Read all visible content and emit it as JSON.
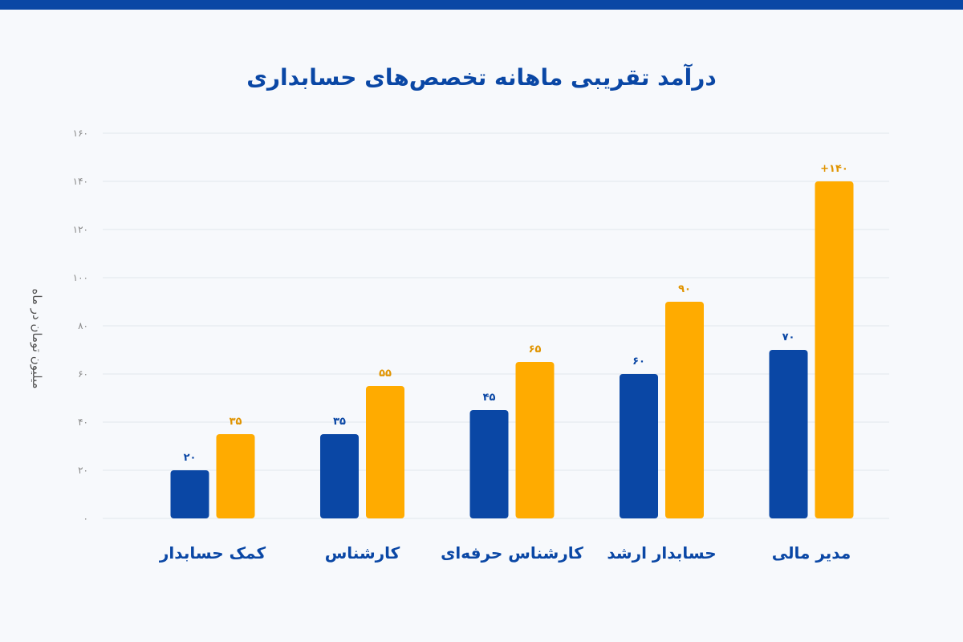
{
  "chart_data": {
    "type": "bar",
    "title": "درآمد تقریبی ماهانه تخصص‌های حسابداری",
    "ylabel": "میلیون تومان در ماه",
    "xlabel": "",
    "ylim": [
      0,
      160
    ],
    "yticks": [
      0,
      20,
      40,
      60,
      80,
      100,
      120,
      140,
      160
    ],
    "ytick_labels": [
      "۰",
      "۲۰",
      "۴۰",
      "۶۰",
      "۸۰",
      "۱۰۰",
      "۱۲۰",
      "۱۴۰",
      "۱۶۰"
    ],
    "categories": [
      "کمک حسابدار",
      "کارشناس",
      "کارشناس حرفه‌ای",
      "حسابدار ارشد",
      "مدیر مالی"
    ],
    "series": [
      {
        "color": "#0a47a5",
        "values": [
          20,
          35,
          45,
          60,
          70
        ],
        "labels": [
          "۲۰",
          "۳۵",
          "۴۵",
          "۶۰",
          "۷۰"
        ]
      },
      {
        "color": "#ffab00",
        "values": [
          35,
          55,
          65,
          90,
          140
        ],
        "labels": [
          "۳۵",
          "۵۵",
          "۶۵",
          "۹۰",
          "+۱۴۰"
        ]
      }
    ],
    "grid": true,
    "legend": "none"
  }
}
